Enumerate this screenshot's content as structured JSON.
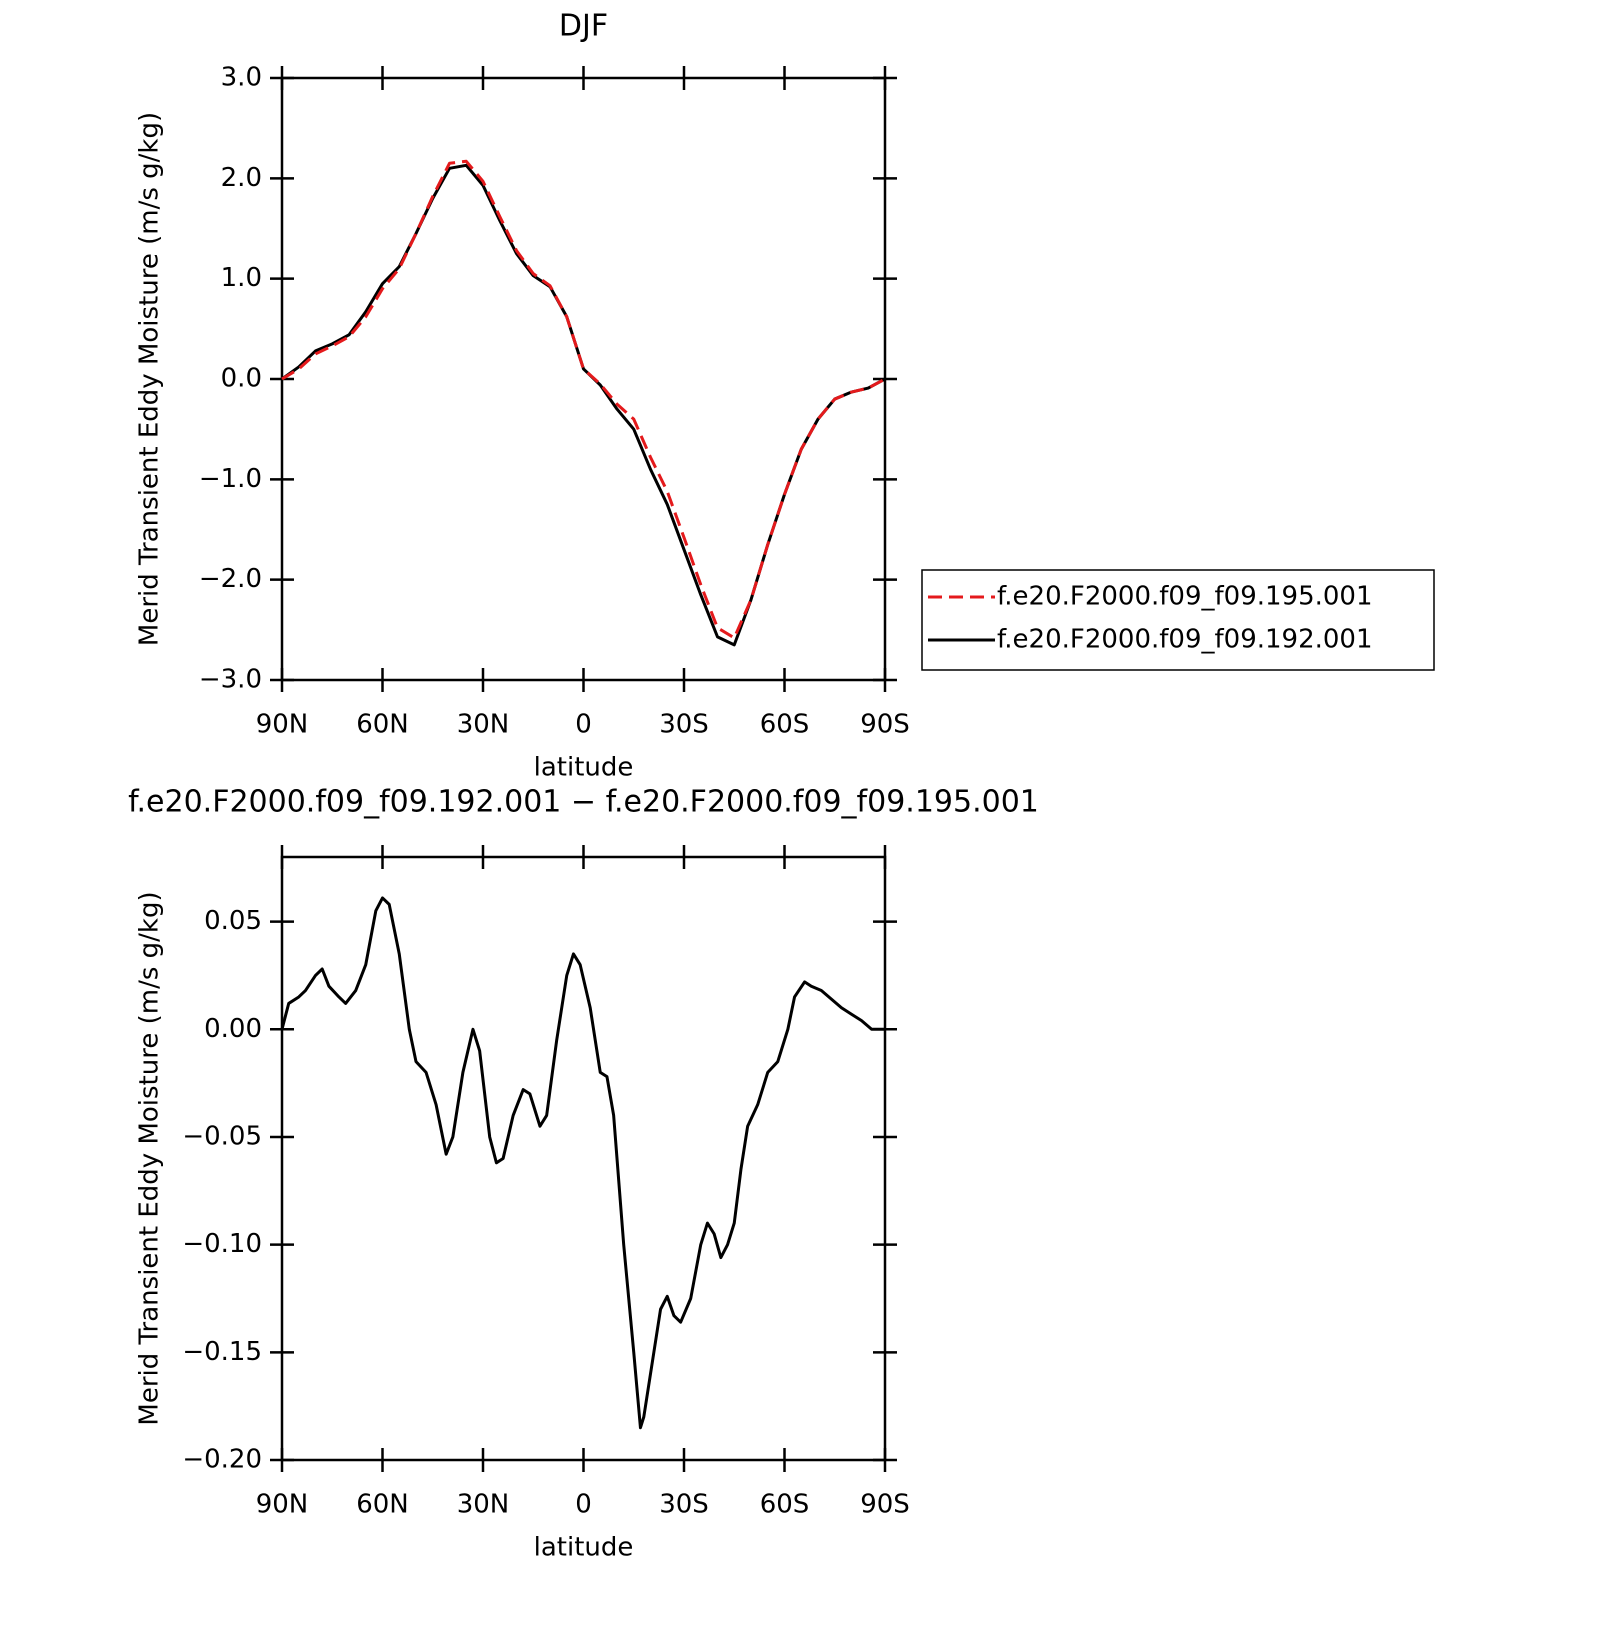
{
  "chart_data": [
    {
      "type": "line",
      "title": "DJF",
      "y_label": "Merid Transient Eddy Moisture (m/s g/kg)",
      "x_label": "latitude",
      "x": [
        90,
        85,
        80,
        75,
        70,
        65,
        60,
        55,
        50,
        45,
        40,
        35,
        30,
        25,
        20,
        15,
        10,
        5,
        0,
        -5,
        -10,
        -15,
        -20,
        -25,
        -30,
        -35,
        -40,
        -45,
        -50,
        -55,
        -60,
        -65,
        -70,
        -75,
        -80,
        -85,
        -90
      ],
      "xlim": [
        90,
        -90
      ],
      "xticks": [
        {
          "value": 90,
          "label": "90N"
        },
        {
          "value": 60,
          "label": "60N"
        },
        {
          "value": 30,
          "label": "30N"
        },
        0,
        {
          "value": -30,
          "label": "30S"
        },
        {
          "value": -60,
          "label": "60S"
        },
        {
          "value": -90,
          "label": "90S"
        }
      ],
      "ylim": [
        -3,
        3
      ],
      "yticks": [
        {
          "value": -3,
          "label": "−3.0"
        },
        {
          "value": -2,
          "label": "−2.0"
        },
        {
          "value": -1,
          "label": "−1.0"
        },
        {
          "value": 0,
          "label": "0.0"
        },
        {
          "value": 1,
          "label": "1.0"
        },
        {
          "value": 2,
          "label": "2.0"
        },
        {
          "value": 3,
          "label": "3.0"
        }
      ],
      "legend": "right",
      "series": [
        {
          "name": "f.e20.F2000.f09_f09.195.001",
          "color": "#e41a1c",
          "dashed": true,
          "values": [
            0,
            0.1,
            0.25,
            0.33,
            0.42,
            0.62,
            0.9,
            1.1,
            1.45,
            1.82,
            2.15,
            2.17,
            1.97,
            1.62,
            1.28,
            1.05,
            0.93,
            0.62,
            0.1,
            -0.05,
            -0.25,
            -0.4,
            -0.78,
            -1.12,
            -1.58,
            -2.05,
            -2.48,
            -2.58,
            -2.2,
            -1.65,
            -1.15,
            -0.7,
            -0.4,
            -0.2,
            -0.13,
            -0.09,
            0
          ]
        },
        {
          "name": "f.e20.F2000.f09_f09.192.001",
          "color": "#000000",
          "dashed": false,
          "values": [
            0,
            0.12,
            0.28,
            0.35,
            0.44,
            0.67,
            0.95,
            1.12,
            1.45,
            1.8,
            2.1,
            2.13,
            1.93,
            1.58,
            1.25,
            1.03,
            0.92,
            0.62,
            0.1,
            -0.06,
            -0.3,
            -0.5,
            -0.9,
            -1.25,
            -1.7,
            -2.15,
            -2.57,
            -2.65,
            -2.2,
            -1.65,
            -1.15,
            -0.7,
            -0.4,
            -0.2,
            -0.13,
            -0.09,
            0
          ]
        }
      ]
    },
    {
      "type": "line",
      "title": "f.e20.F2000.f09_f09.192.001 − f.e20.F2000.f09_f09.195.001",
      "y_label": "Merid Transient Eddy Moisture (m/s g/kg)",
      "x_label": "latitude",
      "x": [
        90,
        88,
        85,
        83,
        80,
        78,
        76,
        73,
        71,
        68,
        65,
        62,
        60,
        58,
        55,
        52,
        50,
        47,
        44,
        41,
        39,
        36,
        33,
        31,
        28,
        26,
        24,
        21,
        18,
        16,
        13,
        11,
        8,
        5,
        3,
        1,
        -2,
        -5,
        -7,
        -9,
        -12,
        -15,
        -17,
        -18,
        -21,
        -23,
        -25,
        -27,
        -29,
        -32,
        -35,
        -37,
        -39,
        -41,
        -43,
        -45,
        -47,
        -49,
        -52,
        -55,
        -58,
        -61,
        -63,
        -66,
        -68,
        -71,
        -74,
        -77,
        -80,
        -83,
        -86,
        -90
      ],
      "xlim": [
        90,
        -90
      ],
      "xticks": [
        {
          "value": 90,
          "label": "90N"
        },
        {
          "value": 60,
          "label": "60N"
        },
        {
          "value": 30,
          "label": "30N"
        },
        0,
        {
          "value": -30,
          "label": "30S"
        },
        {
          "value": -60,
          "label": "60S"
        },
        {
          "value": -90,
          "label": "90S"
        }
      ],
      "ylim": [
        -0.2,
        0.08
      ],
      "yticks": [
        {
          "value": -0.2,
          "label": "−0.20"
        },
        {
          "value": -0.15,
          "label": "−0.15"
        },
        {
          "value": -0.1,
          "label": "−0.10"
        },
        {
          "value": -0.05,
          "label": "−0.05"
        },
        {
          "value": 0,
          "label": "0.00"
        },
        0.05
      ],
      "series": [
        {
          "color": "#000000",
          "dashed": false,
          "values": [
            0,
            0.012,
            0.015,
            0.018,
            0.025,
            0.028,
            0.02,
            0.015,
            0.012,
            0.018,
            0.03,
            0.055,
            0.061,
            0.058,
            0.035,
            0.0,
            -0.015,
            -0.02,
            -0.035,
            -0.058,
            -0.05,
            -0.02,
            0.0,
            -0.01,
            -0.05,
            -0.062,
            -0.06,
            -0.04,
            -0.028,
            -0.03,
            -0.045,
            -0.04,
            -0.005,
            0.025,
            0.035,
            0.03,
            0.01,
            -0.02,
            -0.022,
            -0.04,
            -0.1,
            -0.15,
            -0.185,
            -0.18,
            -0.15,
            -0.13,
            -0.124,
            -0.133,
            -0.136,
            -0.125,
            -0.1,
            -0.09,
            -0.095,
            -0.106,
            -0.1,
            -0.09,
            -0.065,
            -0.045,
            -0.035,
            -0.02,
            -0.015,
            0.0,
            0.015,
            0.022,
            0.02,
            0.018,
            0.014,
            0.01,
            0.007,
            0.004,
            0.0,
            0
          ]
        }
      ]
    }
  ]
}
